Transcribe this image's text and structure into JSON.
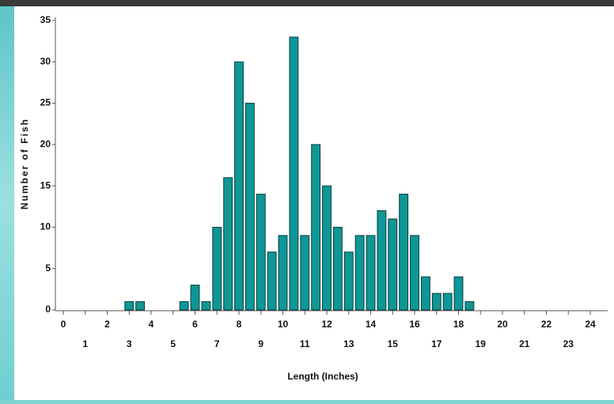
{
  "chart_data": {
    "type": "histogram",
    "x_label": "Length (Inches)",
    "y_label": "Number of Fish",
    "bins": [
      2.75,
      3.25,
      3.75,
      4.25,
      4.75,
      5.25,
      5.75,
      6.25,
      6.75,
      7.25,
      7.75,
      8.25,
      8.75,
      9.25,
      9.75,
      10.25,
      10.75,
      11.25,
      11.75,
      12.25,
      12.75,
      13.25,
      13.75,
      14.25,
      14.75,
      15.25,
      15.75,
      16.25,
      16.75,
      17.25,
      17.75,
      18.25,
      18.75
    ],
    "values": [
      1,
      1,
      0,
      0,
      0,
      1,
      3,
      1,
      10,
      16,
      30,
      25,
      14,
      7,
      9,
      33,
      9,
      20,
      15,
      10,
      7,
      9,
      9,
      12,
      11,
      14,
      9,
      4,
      2,
      2,
      4,
      1
    ],
    "color": "#0f9696",
    "xlim": [
      0,
      24
    ],
    "xticks": [
      0,
      1,
      2,
      3,
      4,
      5,
      6,
      7,
      8,
      9,
      10,
      11,
      12,
      13,
      14,
      15,
      16,
      17,
      18,
      19,
      20,
      21,
      22,
      23,
      24
    ],
    "ylim": [
      0,
      35
    ],
    "yticks": [
      0,
      5,
      10,
      15,
      20,
      25,
      30,
      35
    ]
  }
}
